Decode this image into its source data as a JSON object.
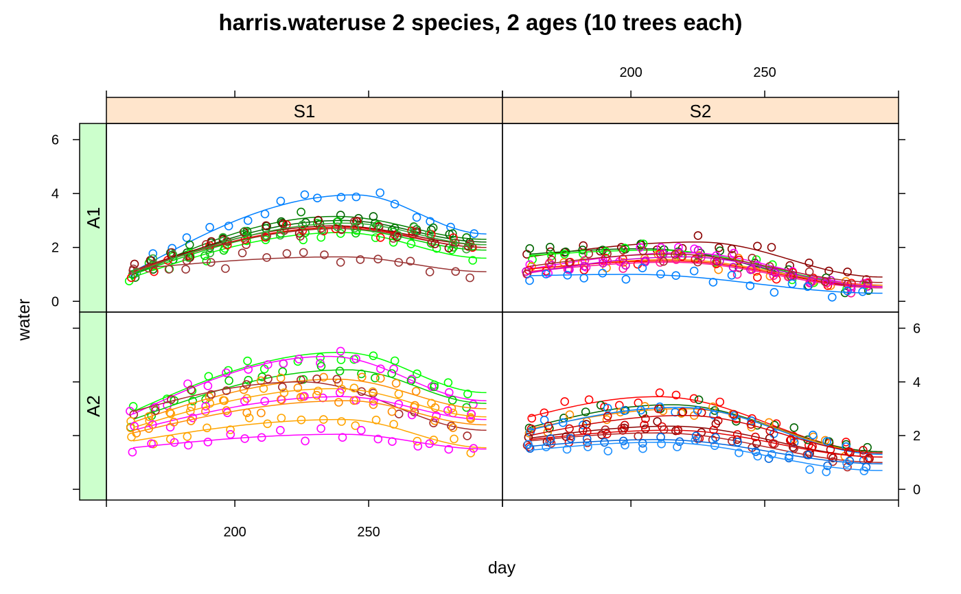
{
  "chart_data": {
    "type": "scatter",
    "title": "harris.wateruse 2 species, 2 ages (10 trees each)",
    "xlabel": "day",
    "ylabel": "water",
    "xlim": [
      152,
      300
    ],
    "ylim": [
      -0.4,
      6.6
    ],
    "x_ticks": [
      200,
      250
    ],
    "y_ticks": [
      0,
      2,
      4,
      6
    ],
    "x_tick_labels": [
      "200",
      "250"
    ],
    "y_tick_labels": [
      "0",
      "2",
      "4",
      "6"
    ],
    "x_day_range": [
      162,
      294
    ],
    "strip_colors": {
      "column": "#ffe5cc",
      "row": "#ccffcc"
    },
    "columns": [
      "S1",
      "S2"
    ],
    "rows": [
      "A1",
      "A2"
    ],
    "smoother": "loess",
    "panels": [
      {
        "species": "S1",
        "age": "A1",
        "series": [
          {
            "color": "#0080ff",
            "start": 1.1,
            "peak": 3.95,
            "end": 2.5,
            "peak_day": 245
          },
          {
            "color": "#008000",
            "start": 1.0,
            "peak": 3.15,
            "end": 2.3,
            "peak_day": 238
          },
          {
            "color": "#006400",
            "start": 1.0,
            "peak": 3.0,
            "end": 2.2,
            "peak_day": 240
          },
          {
            "color": "#00ff00",
            "start": 0.9,
            "peak": 2.55,
            "end": 1.6,
            "peak_day": 240
          },
          {
            "color": "#00cc00",
            "start": 1.0,
            "peak": 2.7,
            "end": 1.9,
            "peak_day": 238
          },
          {
            "color": "#ff0000",
            "start": 1.1,
            "peak": 2.75,
            "end": 2.0,
            "peak_day": 240
          },
          {
            "color": "#8b0000",
            "start": 1.15,
            "peak": 2.8,
            "end": 2.1,
            "peak_day": 238
          },
          {
            "color": "#a52a2a",
            "start": 1.15,
            "peak": 2.7,
            "end": 2.0,
            "peak_day": 240
          },
          {
            "color": "#993333",
            "start": 1.2,
            "peak": 1.65,
            "end": 1.1,
            "peak_day": 240
          },
          {
            "color": "#33aa33",
            "start": 1.05,
            "peak": 2.9,
            "end": 2.1,
            "peak_day": 242
          }
        ]
      },
      {
        "species": "S2",
        "age": "A1",
        "series": [
          {
            "color": "#8b0000",
            "start": 1.65,
            "peak": 2.2,
            "end": 0.9,
            "peak_day": 225
          },
          {
            "color": "#006400",
            "start": 1.75,
            "peak": 1.95,
            "end": 0.5,
            "peak_day": 205
          },
          {
            "color": "#00ff00",
            "start": 1.7,
            "peak": 1.9,
            "end": 0.6,
            "peak_day": 210
          },
          {
            "color": "#ff00ff",
            "start": 1.2,
            "peak": 1.8,
            "end": 0.6,
            "peak_day": 220
          },
          {
            "color": "#ff8c00",
            "start": 1.1,
            "peak": 1.55,
            "end": 0.6,
            "peak_day": 215
          },
          {
            "color": "#ff0000",
            "start": 1.2,
            "peak": 1.5,
            "end": 0.55,
            "peak_day": 215
          },
          {
            "color": "#ff1493",
            "start": 1.1,
            "peak": 1.45,
            "end": 0.5,
            "peak_day": 215
          },
          {
            "color": "#cc00cc",
            "start": 1.05,
            "peak": 1.65,
            "end": 0.55,
            "peak_day": 220
          },
          {
            "color": "#a52a2a",
            "start": 1.3,
            "peak": 1.75,
            "end": 0.7,
            "peak_day": 215
          },
          {
            "color": "#0080ff",
            "start": 0.95,
            "peak": 1.0,
            "end": 0.3,
            "peak_day": 200
          }
        ]
      },
      {
        "species": "S1",
        "age": "A2",
        "series": [
          {
            "color": "#00ff00",
            "start": 2.9,
            "peak": 5.1,
            "end": 3.6,
            "peak_day": 240
          },
          {
            "color": "#ff00ff",
            "start": 2.8,
            "peak": 4.95,
            "end": 3.3,
            "peak_day": 235
          },
          {
            "color": "#00cc00",
            "start": 2.6,
            "peak": 4.45,
            "end": 3.2,
            "peak_day": 242
          },
          {
            "color": "#ff8c00",
            "start": 2.5,
            "peak": 4.1,
            "end": 3.0,
            "peak_day": 238
          },
          {
            "color": "#a52a2a",
            "start": 2.9,
            "peak": 4.0,
            "end": 2.2,
            "peak_day": 225
          },
          {
            "color": "#ffa500",
            "start": 2.3,
            "peak": 3.75,
            "end": 2.7,
            "peak_day": 238
          },
          {
            "color": "#ff00ff",
            "start": 2.2,
            "peak": 3.45,
            "end": 2.6,
            "peak_day": 240
          },
          {
            "color": "#ff8c00",
            "start": 2.1,
            "peak": 3.3,
            "end": 2.4,
            "peak_day": 242
          },
          {
            "color": "#ffa500",
            "start": 1.8,
            "peak": 2.6,
            "end": 1.55,
            "peak_day": 240
          },
          {
            "color": "#ff00ff",
            "start": 1.55,
            "peak": 2.05,
            "end": 1.5,
            "peak_day": 240
          }
        ]
      },
      {
        "species": "S2",
        "age": "A2",
        "series": [
          {
            "color": "#ff0000",
            "start": 2.7,
            "peak": 3.45,
            "end": 1.4,
            "peak_day": 210
          },
          {
            "color": "#006400",
            "start": 2.3,
            "peak": 3.15,
            "end": 1.4,
            "peak_day": 215
          },
          {
            "color": "#ff8c00",
            "start": 2.25,
            "peak": 3.0,
            "end": 1.35,
            "peak_day": 220
          },
          {
            "color": "#0080ff",
            "start": 2.2,
            "peak": 3.05,
            "end": 1.3,
            "peak_day": 218
          },
          {
            "color": "#cc0000",
            "start": 2.0,
            "peak": 2.75,
            "end": 1.35,
            "peak_day": 220
          },
          {
            "color": "#8b0000",
            "start": 1.9,
            "peak": 2.35,
            "end": 1.2,
            "peak_day": 215
          },
          {
            "color": "#e00000",
            "start": 1.85,
            "peak": 2.2,
            "end": 1.2,
            "peak_day": 215
          },
          {
            "color": "#b22222",
            "start": 1.8,
            "peak": 2.1,
            "end": 1.0,
            "peak_day": 210
          },
          {
            "color": "#0066dd",
            "start": 1.6,
            "peak": 1.85,
            "end": 0.95,
            "peak_day": 210
          },
          {
            "color": "#1e90ff",
            "start": 1.45,
            "peak": 1.75,
            "end": 0.7,
            "peak_day": 210
          }
        ]
      }
    ]
  }
}
